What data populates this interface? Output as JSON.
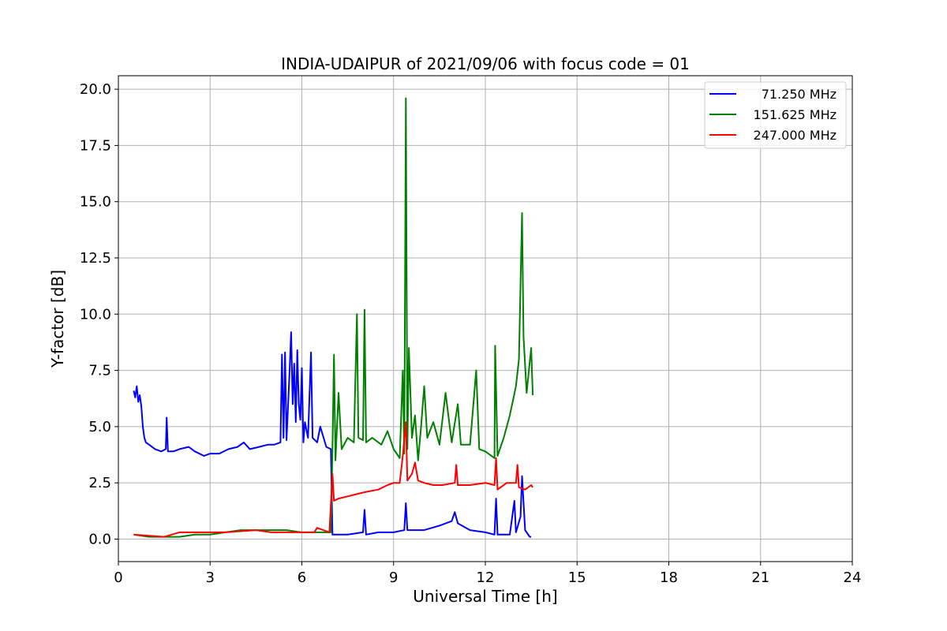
{
  "chart_data": {
    "type": "line",
    "title": "INDIA-UDAIPUR of 2021/09/06 with focus code = 01",
    "xlabel": "Universal Time [h]",
    "ylabel": "Y-factor [dB]",
    "xlim": [
      0,
      24
    ],
    "ylim": [
      -1.0,
      20.6
    ],
    "xticks": [
      0,
      3,
      6,
      9,
      12,
      15,
      18,
      21,
      24
    ],
    "xtick_labels": [
      "0",
      "3",
      "6",
      "9",
      "12",
      "15",
      "18",
      "21",
      "24"
    ],
    "yticks": [
      0,
      2.5,
      5,
      7.5,
      10,
      12.5,
      15,
      17.5,
      20
    ],
    "ytick_labels": [
      "0.0",
      "2.5",
      "5.0",
      "7.5",
      "10.0",
      "12.5",
      "15.0",
      "17.5",
      "20.0"
    ],
    "grid": true,
    "legend_position": "top-right",
    "series": [
      {
        "name": "71.250 MHz",
        "color": "#0000ff",
        "points": [
          [
            0.5,
            6.6
          ],
          [
            0.55,
            6.3
          ],
          [
            0.6,
            6.8
          ],
          [
            0.65,
            6.1
          ],
          [
            0.7,
            6.4
          ],
          [
            0.75,
            5.9
          ],
          [
            0.8,
            5.0
          ],
          [
            0.85,
            4.5
          ],
          [
            0.9,
            4.3
          ],
          [
            1.0,
            4.2
          ],
          [
            1.2,
            4.0
          ],
          [
            1.4,
            3.9
          ],
          [
            1.55,
            4.0
          ],
          [
            1.58,
            5.4
          ],
          [
            1.62,
            3.9
          ],
          [
            1.8,
            3.9
          ],
          [
            2.0,
            4.0
          ],
          [
            2.3,
            4.1
          ],
          [
            2.5,
            3.9
          ],
          [
            2.8,
            3.7
          ],
          [
            3.0,
            3.8
          ],
          [
            3.3,
            3.8
          ],
          [
            3.6,
            4.0
          ],
          [
            3.9,
            4.1
          ],
          [
            4.1,
            4.3
          ],
          [
            4.3,
            4.0
          ],
          [
            4.6,
            4.1
          ],
          [
            4.9,
            4.2
          ],
          [
            5.1,
            4.2
          ],
          [
            5.3,
            4.3
          ],
          [
            5.35,
            8.2
          ],
          [
            5.4,
            4.5
          ],
          [
            5.45,
            8.3
          ],
          [
            5.5,
            4.4
          ],
          [
            5.6,
            7.5
          ],
          [
            5.65,
            9.2
          ],
          [
            5.7,
            6.0
          ],
          [
            5.75,
            7.8
          ],
          [
            5.8,
            5.2
          ],
          [
            5.85,
            8.4
          ],
          [
            5.9,
            6.0
          ],
          [
            5.95,
            5.3
          ],
          [
            6.0,
            7.6
          ],
          [
            6.05,
            4.3
          ],
          [
            6.1,
            5.2
          ],
          [
            6.2,
            4.5
          ],
          [
            6.3,
            8.3
          ],
          [
            6.35,
            4.5
          ],
          [
            6.5,
            4.3
          ],
          [
            6.6,
            5.0
          ],
          [
            6.8,
            4.1
          ],
          [
            6.95,
            4.0
          ],
          [
            7.0,
            0.2
          ],
          [
            7.5,
            0.2
          ],
          [
            8.0,
            0.3
          ],
          [
            8.05,
            1.3
          ],
          [
            8.1,
            0.2
          ],
          [
            8.5,
            0.3
          ],
          [
            9.0,
            0.3
          ],
          [
            9.35,
            0.4
          ],
          [
            9.4,
            1.6
          ],
          [
            9.45,
            0.4
          ],
          [
            10.0,
            0.4
          ],
          [
            10.5,
            0.6
          ],
          [
            10.9,
            0.8
          ],
          [
            11.0,
            1.2
          ],
          [
            11.1,
            0.7
          ],
          [
            11.5,
            0.4
          ],
          [
            12.0,
            0.3
          ],
          [
            12.3,
            0.2
          ],
          [
            12.35,
            1.8
          ],
          [
            12.4,
            0.2
          ],
          [
            12.8,
            0.2
          ],
          [
            12.95,
            1.7
          ],
          [
            13.0,
            0.3
          ],
          [
            13.15,
            1.0
          ],
          [
            13.2,
            2.8
          ],
          [
            13.3,
            0.4
          ],
          [
            13.45,
            0.1
          ],
          [
            13.5,
            0.1
          ]
        ]
      },
      {
        "name": "151.625 MHz",
        "color": "#008000",
        "points": [
          [
            0.5,
            0.2
          ],
          [
            1.0,
            0.1
          ],
          [
            1.5,
            0.1
          ],
          [
            2.0,
            0.1
          ],
          [
            2.5,
            0.2
          ],
          [
            3.0,
            0.2
          ],
          [
            3.5,
            0.3
          ],
          [
            4.0,
            0.4
          ],
          [
            4.5,
            0.4
          ],
          [
            5.0,
            0.4
          ],
          [
            5.5,
            0.4
          ],
          [
            6.0,
            0.3
          ],
          [
            6.5,
            0.3
          ],
          [
            6.95,
            0.3
          ],
          [
            7.0,
            4.0
          ],
          [
            7.05,
            8.2
          ],
          [
            7.1,
            3.5
          ],
          [
            7.2,
            6.5
          ],
          [
            7.3,
            4.0
          ],
          [
            7.5,
            4.5
          ],
          [
            7.7,
            4.3
          ],
          [
            7.8,
            10.0
          ],
          [
            7.85,
            4.5
          ],
          [
            8.0,
            4.4
          ],
          [
            8.05,
            10.2
          ],
          [
            8.1,
            4.3
          ],
          [
            8.3,
            4.5
          ],
          [
            8.6,
            4.2
          ],
          [
            8.8,
            4.8
          ],
          [
            9.0,
            4.0
          ],
          [
            9.2,
            3.6
          ],
          [
            9.3,
            7.5
          ],
          [
            9.35,
            3.8
          ],
          [
            9.4,
            19.6
          ],
          [
            9.45,
            4.0
          ],
          [
            9.5,
            8.5
          ],
          [
            9.6,
            4.5
          ],
          [
            9.7,
            5.5
          ],
          [
            9.8,
            3.5
          ],
          [
            9.9,
            5.0
          ],
          [
            10.0,
            6.8
          ],
          [
            10.1,
            4.5
          ],
          [
            10.3,
            5.2
          ],
          [
            10.5,
            4.2
          ],
          [
            10.7,
            6.5
          ],
          [
            10.9,
            4.3
          ],
          [
            11.1,
            6.0
          ],
          [
            11.2,
            4.2
          ],
          [
            11.5,
            4.2
          ],
          [
            11.7,
            7.5
          ],
          [
            11.8,
            4.0
          ],
          [
            12.0,
            3.9
          ],
          [
            12.3,
            3.6
          ],
          [
            12.32,
            8.6
          ],
          [
            12.4,
            3.7
          ],
          [
            12.6,
            4.5
          ],
          [
            12.8,
            5.5
          ],
          [
            13.0,
            6.8
          ],
          [
            13.1,
            8.0
          ],
          [
            13.2,
            14.5
          ],
          [
            13.25,
            9.0
          ],
          [
            13.35,
            6.5
          ],
          [
            13.5,
            8.5
          ],
          [
            13.55,
            6.4
          ]
        ]
      },
      {
        "name": "247.000 MHz",
        "color": "#ff0000",
        "points": [
          [
            0.5,
            0.2
          ],
          [
            1.0,
            0.15
          ],
          [
            1.5,
            0.1
          ],
          [
            2.0,
            0.3
          ],
          [
            2.5,
            0.3
          ],
          [
            3.0,
            0.3
          ],
          [
            3.5,
            0.3
          ],
          [
            4.0,
            0.35
          ],
          [
            4.5,
            0.4
          ],
          [
            5.0,
            0.3
          ],
          [
            5.5,
            0.3
          ],
          [
            6.0,
            0.3
          ],
          [
            6.4,
            0.3
          ],
          [
            6.5,
            0.5
          ],
          [
            6.9,
            0.3
          ],
          [
            7.0,
            2.9
          ],
          [
            7.05,
            1.7
          ],
          [
            7.2,
            1.8
          ],
          [
            7.5,
            1.9
          ],
          [
            7.8,
            2.0
          ],
          [
            8.1,
            2.1
          ],
          [
            8.5,
            2.2
          ],
          [
            8.8,
            2.4
          ],
          [
            9.0,
            2.5
          ],
          [
            9.2,
            2.5
          ],
          [
            9.3,
            3.7
          ],
          [
            9.4,
            5.2
          ],
          [
            9.45,
            2.6
          ],
          [
            9.6,
            2.9
          ],
          [
            9.7,
            3.4
          ],
          [
            9.8,
            2.6
          ],
          [
            10.0,
            2.5
          ],
          [
            10.3,
            2.4
          ],
          [
            10.6,
            2.4
          ],
          [
            11.0,
            2.5
          ],
          [
            11.05,
            3.3
          ],
          [
            11.1,
            2.4
          ],
          [
            11.5,
            2.4
          ],
          [
            12.0,
            2.5
          ],
          [
            12.3,
            2.4
          ],
          [
            12.35,
            3.6
          ],
          [
            12.4,
            2.2
          ],
          [
            12.7,
            2.5
          ],
          [
            13.0,
            2.5
          ],
          [
            13.05,
            3.3
          ],
          [
            13.1,
            2.3
          ],
          [
            13.3,
            2.2
          ],
          [
            13.5,
            2.4
          ],
          [
            13.55,
            2.3
          ]
        ]
      }
    ]
  }
}
